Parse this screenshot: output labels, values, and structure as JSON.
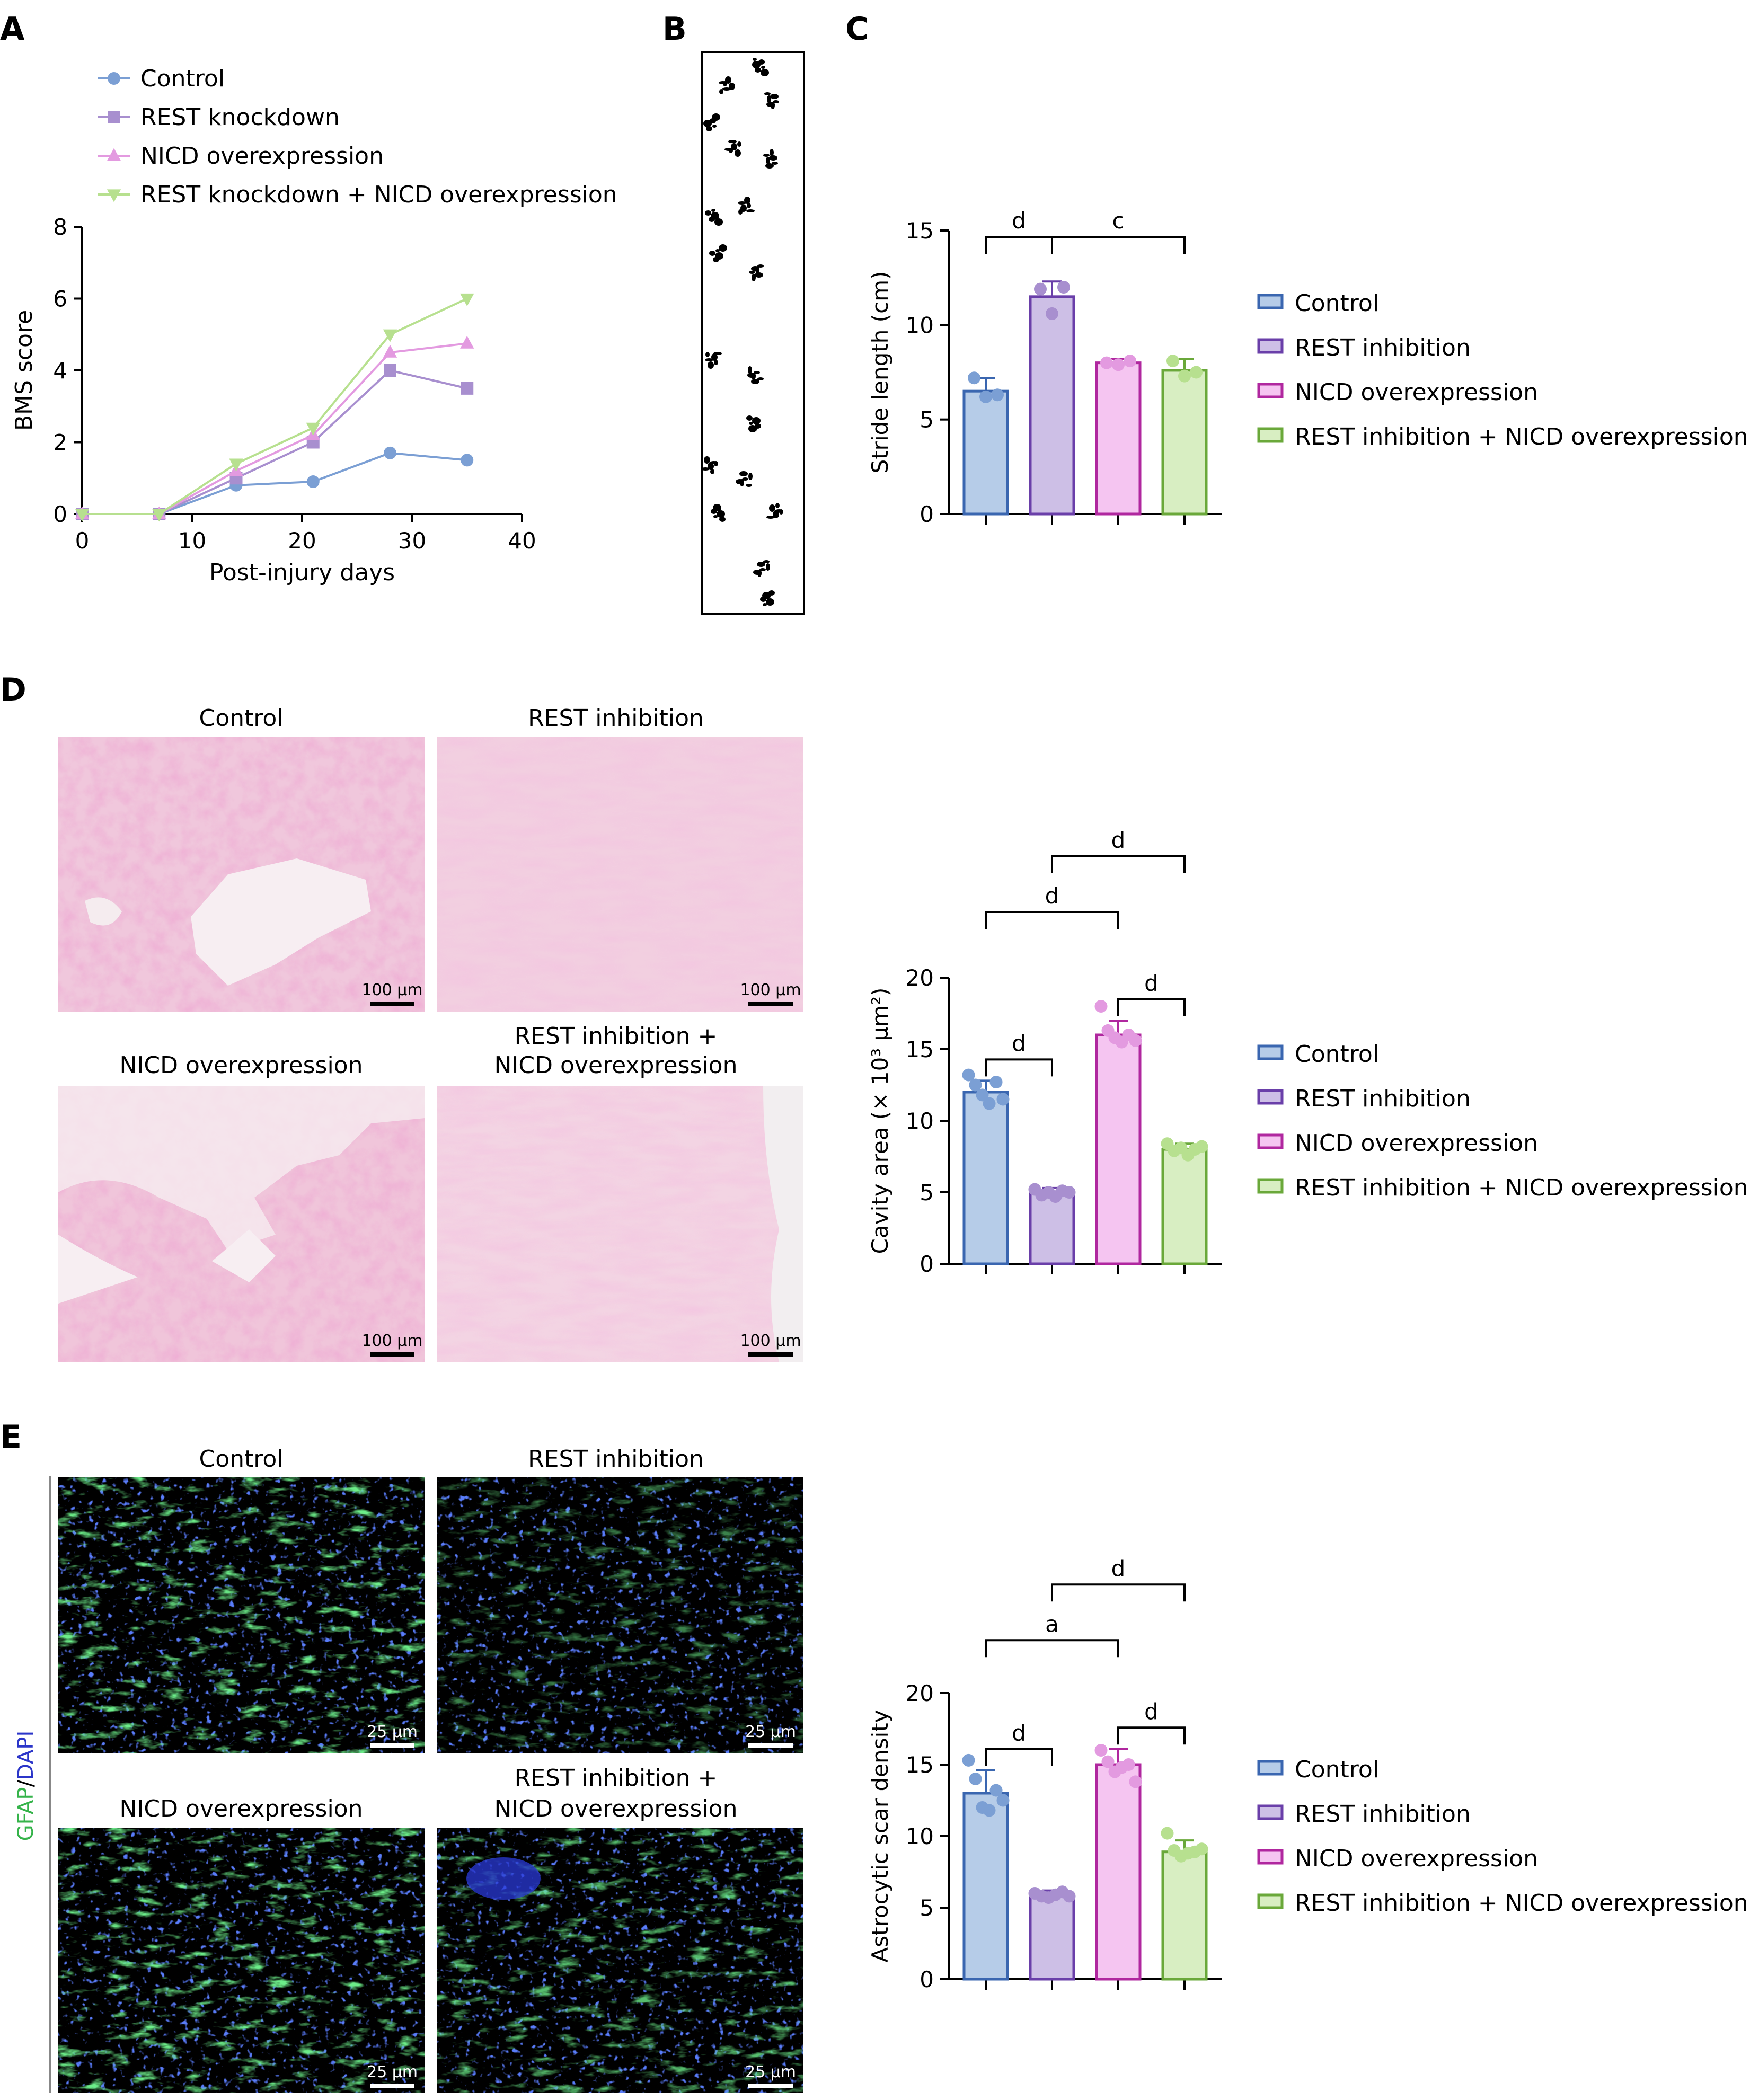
{
  "panel_letters": {
    "A": "A",
    "B": "B",
    "C": "C",
    "D": "D",
    "E": "E"
  },
  "colors": {
    "control": "#7b9fd4",
    "rest": "#a88fcf",
    "nicd": "#e39ae0",
    "combo": "#b7e08f",
    "control_edge": "#3a66b0",
    "rest_edge": "#6a3fa9",
    "nicd_edge": "#b0279f",
    "combo_edge": "#6aa83a",
    "control_fill": "#b6cce8",
    "rest_fill": "#cdbfe6",
    "nicd_fill": "#f5c5f1",
    "combo_fill": "#d8eec2"
  },
  "chart_data": [
    {
      "id": "A",
      "type": "line",
      "ylabel": "BMS score",
      "xlabel": "Post-injury days",
      "xlim": [
        0,
        40
      ],
      "ylim": [
        0,
        8
      ],
      "xticks": [
        "0",
        "10",
        "20",
        "30",
        "40"
      ],
      "yticks": [
        "0",
        "2",
        "4",
        "6",
        "8"
      ],
      "legend": "top-left",
      "series": [
        {
          "name": "Control",
          "marker": "circle",
          "x": [
            0,
            7,
            14,
            21,
            28,
            35
          ],
          "y": [
            0,
            0,
            0.8,
            0.9,
            1.7,
            1.5
          ]
        },
        {
          "name": "REST knockdown",
          "marker": "square",
          "x": [
            0,
            7,
            14,
            21,
            28,
            35
          ],
          "y": [
            0,
            0,
            1.0,
            2.0,
            4.0,
            3.5
          ]
        },
        {
          "name": "NICD overexpression",
          "marker": "triangle-up",
          "x": [
            0,
            7,
            14,
            21,
            28,
            35
          ],
          "y": [
            0,
            0,
            1.2,
            2.2,
            4.5,
            4.75
          ]
        },
        {
          "name": "REST knockdown + NICD overexpression",
          "marker": "triangle-down",
          "x": [
            0,
            7,
            14,
            21,
            28,
            35
          ],
          "y": [
            0,
            0,
            1.4,
            2.4,
            5.0,
            6.0
          ]
        }
      ]
    },
    {
      "id": "C",
      "type": "bar",
      "ylabel": "Stride length (cm)",
      "ylim": [
        0,
        15
      ],
      "yticks": [
        "0",
        "5",
        "10",
        "15"
      ],
      "categories": [
        "Control",
        "REST inhibition",
        "NICD overexpression",
        "REST inhibition + NICD overexpression"
      ],
      "values": [
        6.5,
        11.5,
        8.0,
        7.6
      ],
      "errors": [
        0.7,
        0.8,
        0.2,
        0.6
      ],
      "points": [
        [
          7.2,
          6.2,
          6.3
        ],
        [
          11.9,
          10.6,
          12.0
        ],
        [
          8.0,
          7.9,
          8.1
        ],
        [
          8.1,
          7.3,
          7.5
        ]
      ],
      "significance": [
        {
          "from": 0,
          "to": 1,
          "label": "d",
          "level": 1
        },
        {
          "from": 1,
          "to": 3,
          "label": "c",
          "level": 1
        }
      ],
      "legend": "right"
    },
    {
      "id": "D",
      "type": "bar",
      "ylabel": "Cavity area (× 10³ µm²)",
      "ylim": [
        0,
        20
      ],
      "yticks": [
        "0",
        "5",
        "10",
        "15",
        "20"
      ],
      "categories": [
        "Control",
        "REST inhibition",
        "NICD overexpression",
        "REST inhibition + NICD overexpression"
      ],
      "values": [
        12.0,
        5.0,
        16.0,
        8.0
      ],
      "errors": [
        0.8,
        0.3,
        1.0,
        0.4
      ],
      "points": [
        [
          13.2,
          12.5,
          11.8,
          11.2,
          12.7,
          11.5
        ],
        [
          5.2,
          4.8,
          5.0,
          4.7,
          5.1,
          5.0
        ],
        [
          18.0,
          16.3,
          15.8,
          15.5,
          16.0,
          15.6
        ],
        [
          8.4,
          7.9,
          8.1,
          7.6,
          8.0,
          8.2
        ]
      ],
      "significance": [
        {
          "from": 0,
          "to": 1,
          "label": "d",
          "level": 1
        },
        {
          "from": 2,
          "to": 3,
          "label": "d",
          "level": 1
        },
        {
          "from": 0,
          "to": 2,
          "label": "d",
          "level": 2
        },
        {
          "from": 1,
          "to": 3,
          "label": "d",
          "level": 3
        }
      ],
      "legend": "right"
    },
    {
      "id": "E",
      "type": "bar",
      "ylabel": "Astrocytic scar density",
      "ylim": [
        0,
        20
      ],
      "yticks": [
        "0",
        "5",
        "10",
        "15",
        "20"
      ],
      "categories": [
        "Control",
        "REST inhibition",
        "NICD overexpression",
        "REST inhibition + NICD overexpression"
      ],
      "values": [
        13.0,
        5.9,
        15.0,
        8.9
      ],
      "errors": [
        1.6,
        0.3,
        1.1,
        0.8
      ],
      "points": [
        [
          15.3,
          14.0,
          12.0,
          11.8,
          13.2,
          12.5
        ],
        [
          6.0,
          5.8,
          5.7,
          5.9,
          6.1,
          5.8
        ],
        [
          16.0,
          15.2,
          14.5,
          14.8,
          15.0,
          13.8
        ],
        [
          10.2,
          9.0,
          8.6,
          8.8,
          8.9,
          9.1
        ]
      ],
      "significance": [
        {
          "from": 0,
          "to": 1,
          "label": "d",
          "level": 1
        },
        {
          "from": 2,
          "to": 3,
          "label": "d",
          "level": 1
        },
        {
          "from": 0,
          "to": 2,
          "label": "a",
          "level": 2
        },
        {
          "from": 1,
          "to": 3,
          "label": "d",
          "level": 3
        }
      ],
      "legend": "right"
    }
  ],
  "panel_d": {
    "titles": [
      "Control",
      "REST inhibition",
      "NICD overexpression",
      "REST inhibition +",
      "NICD overexpression"
    ],
    "scale_bar": "100 µm"
  },
  "panel_e": {
    "titles": [
      "Control",
      "REST inhibition",
      "NICD overexpression",
      "REST inhibition +",
      "NICD overexpression"
    ],
    "scale_bar": "25 µm",
    "stain_gfap": "GFAP",
    "stain_sep": "/",
    "stain_dapi": "DAPI"
  }
}
